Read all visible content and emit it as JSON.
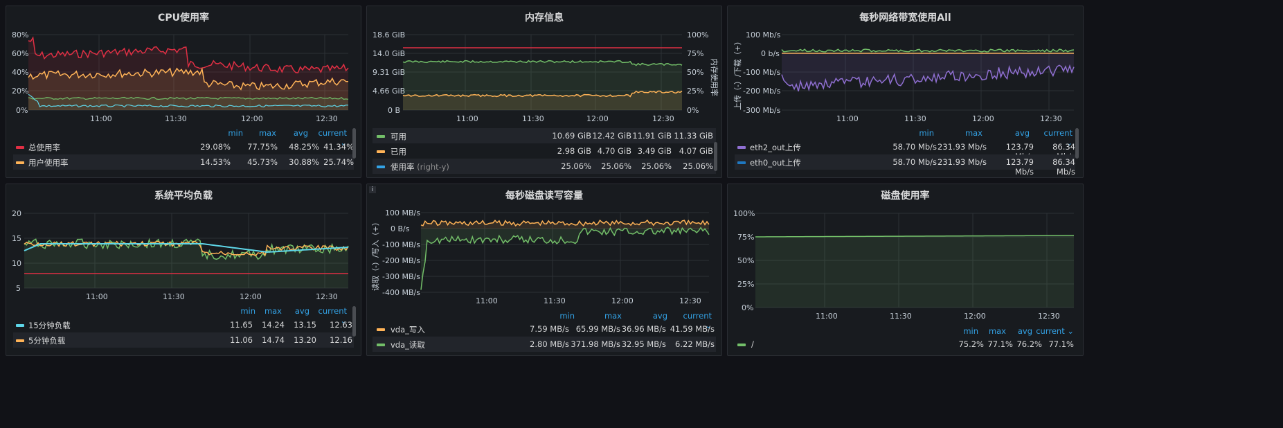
{
  "legend_headers": {
    "min": "min",
    "max": "max",
    "avg": "avg",
    "current": "current ⌄"
  },
  "panels": {
    "cpu": {
      "title": "CPU使用率",
      "y_ticks": [
        "80%",
        "60%",
        "40%",
        "20%",
        "0%"
      ],
      "x_ticks": [
        "11:00",
        "11:30",
        "12:00",
        "12:30"
      ],
      "legend": [
        {
          "name": "总使用率",
          "color": "#e02f44",
          "min": "29.08%",
          "max": "77.75%",
          "avg": "48.25%",
          "current": "41.34%"
        },
        {
          "name": "用户使用率",
          "color": "#ffb357",
          "min": "14.53%",
          "max": "45.73%",
          "avg": "30.88%",
          "current": "25.74%"
        }
      ],
      "series_colors": [
        "#e02f44",
        "#ffb357",
        "#73bf69",
        "#5ed6e8"
      ]
    },
    "mem": {
      "title": "内存信息",
      "y_ticks": [
        "18.6 GiB",
        "14.0 GiB",
        "9.31 GiB",
        "4.66 GiB",
        "0 B"
      ],
      "y2_ticks": [
        "100%",
        "75%",
        "50%",
        "25%",
        "0%"
      ],
      "y2_label": "内存使用率",
      "x_ticks": [
        "11:00",
        "11:30",
        "12:00",
        "12:30"
      ],
      "legend": [
        {
          "name": "可用",
          "sub": "",
          "color": "#73bf69",
          "min": "10.69 GiB",
          "max": "12.42 GiB",
          "avg": "11.91 GiB",
          "current": "11.33 GiB"
        },
        {
          "name": "已用",
          "sub": "",
          "color": "#ffb357",
          "min": "2.98 GiB",
          "max": "4.70 GiB",
          "avg": "3.49 GiB",
          "current": "4.07 GiB"
        },
        {
          "name": "使用率",
          "sub": "(right-y)",
          "color": "#33a2e5",
          "min": "25.06%",
          "max": "25.06%",
          "avg": "25.06%",
          "current": "25.06%"
        }
      ]
    },
    "net": {
      "title": "每秒网络带宽使用All",
      "y_ticks": [
        "100 Mb/s",
        "0 b/s",
        "-100 Mb/s",
        "-200 Mb/s",
        "-300 Mb/s"
      ],
      "y_label": "上传（-）/下载（+）",
      "x_ticks": [
        "11:00",
        "11:30",
        "12:00",
        "12:30"
      ],
      "legend": [
        {
          "name": "eth2_out上传",
          "color": "#8f6fd1",
          "min": "58.70 Mb/s",
          "max": "231.93 Mb/s",
          "avg": "123.79 Mb/s",
          "current": "86.34 Mb/s"
        },
        {
          "name": "eth0_out上传",
          "color": "#1f78c1",
          "min": "58.70 Mb/s",
          "max": "231.93 Mb/s",
          "avg": "123.79 Mb/s",
          "current": "86.34 Mb/s"
        }
      ]
    },
    "load": {
      "title": "系统平均负载",
      "y_ticks": [
        "20",
        "15",
        "10",
        "5"
      ],
      "x_ticks": [
        "11:00",
        "11:30",
        "12:00",
        "12:30"
      ],
      "legend": [
        {
          "name": "15分钟负载",
          "color": "#5ed6e8",
          "min": "11.65",
          "max": "14.24",
          "avg": "13.15",
          "current": "12.63"
        },
        {
          "name": "5分钟负载",
          "color": "#ffb357",
          "min": "11.06",
          "max": "14.74",
          "avg": "13.20",
          "current": "12.16"
        }
      ]
    },
    "disk_io": {
      "title": "每秒磁盘读写容量",
      "y_ticks": [
        "100 MB/s",
        "0 B/s",
        "-100 MB/s",
        "-200 MB/s",
        "-300 MB/s",
        "-400 MB/s"
      ],
      "y_label": "读取（-）/写入（+）",
      "x_ticks": [
        "11:00",
        "11:30",
        "12:00",
        "12:30"
      ],
      "info": "i",
      "legend": [
        {
          "name": "vda_写入",
          "color": "#ffb357",
          "min": "7.59 MB/s",
          "max": "65.99 MB/s",
          "avg": "36.96 MB/s",
          "current": "41.59 MB/s"
        },
        {
          "name": "vda_读取",
          "color": "#73bf69",
          "min": "2.80 MB/s",
          "max": "371.98 MB/s",
          "avg": "32.95 MB/s",
          "current": "6.22 MB/s"
        }
      ]
    },
    "disk_usage": {
      "title": "磁盘使用率",
      "y_ticks": [
        "100%",
        "75%",
        "50%",
        "25%",
        "0%"
      ],
      "x_ticks": [
        "11:00",
        "11:30",
        "12:00",
        "12:30"
      ],
      "legend": [
        {
          "name": "/",
          "color": "#73bf69",
          "min": "75.2%",
          "max": "77.1%",
          "avg": "76.2%",
          "current": "77.1%"
        }
      ]
    }
  }
}
